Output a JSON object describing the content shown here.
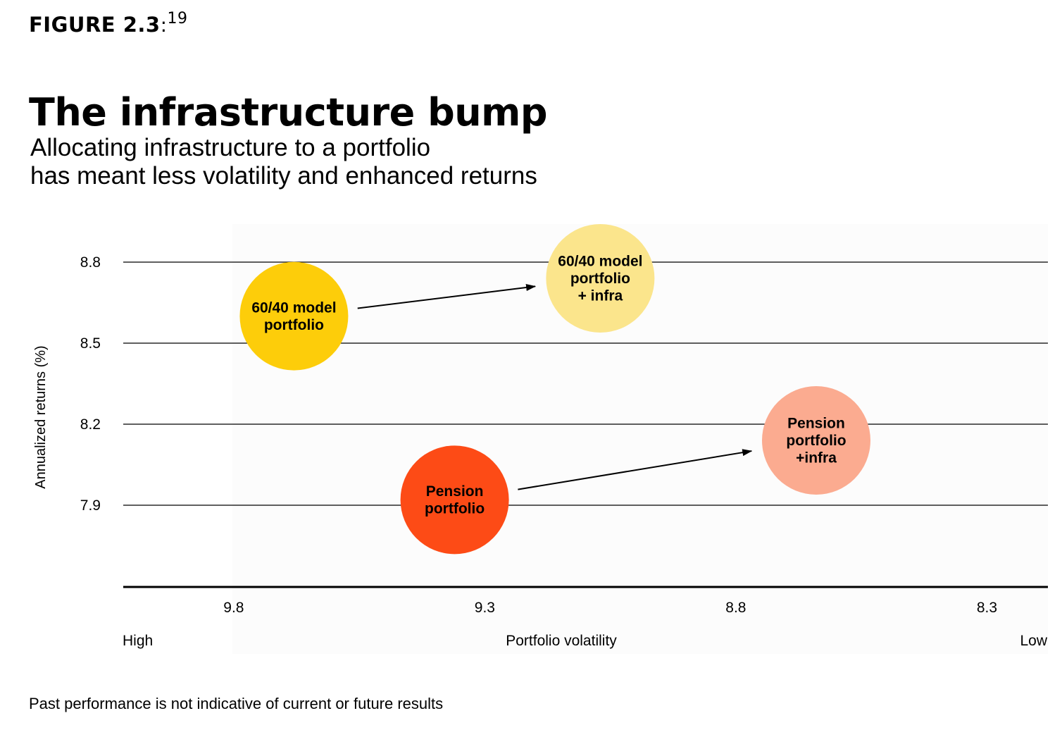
{
  "figure": {
    "label": "FIGURE 2.3",
    "separator": ":",
    "footnote_ref": "19"
  },
  "heading": {
    "title": "The infrastructure bump",
    "subtitle": "Allocating infrastructure to a portfolio\nhas meant less volatility and enhanced returns"
  },
  "footnote": "Past performance is not indicative of current or future results",
  "chart_data": {
    "type": "scatter",
    "ylabel": "Annualized returns (%)",
    "xlabel": "Portfolio volatility",
    "x_axis_end_labels": {
      "left": "High",
      "right": "Low"
    },
    "x_reversed": true,
    "xlim": [
      10.02,
      8.18
    ],
    "ylim": [
      7.6,
      8.8
    ],
    "x_ticks": [
      9.8,
      9.3,
      8.8,
      8.3
    ],
    "y_ticks": [
      8.8,
      8.5,
      8.2,
      7.9
    ],
    "grid": "horizontal",
    "points": [
      {
        "label": "60/40 model\nportfolio",
        "x": 9.68,
        "y": 8.6,
        "color": "#FDCD0A",
        "text_color": "#000000"
      },
      {
        "label": "60/40 model\nportfolio\n+ infra",
        "x": 9.07,
        "y": 8.74,
        "color": "#FBE58C",
        "text_color": "#000000"
      },
      {
        "label": "Pension\nportfolio",
        "x": 9.36,
        "y": 7.92,
        "color": "#FD4B16",
        "text_color": "#000000"
      },
      {
        "label": "Pension\nportfolio\n+infra",
        "x": 8.64,
        "y": 8.14,
        "color": "#FBAB90",
        "text_color": "#000000"
      }
    ],
    "arrows": [
      {
        "from": "60/40 model\nportfolio",
        "to": "60/40 model\nportfolio\n+ infra"
      },
      {
        "from": "Pension\nportfolio",
        "to": "Pension\nportfolio\n+infra"
      }
    ]
  }
}
